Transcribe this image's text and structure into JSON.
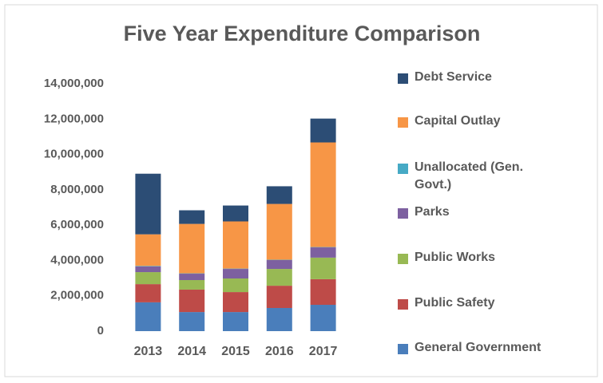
{
  "chart_data": {
    "type": "stacked_bar",
    "title": "Five Year Expenditure Comparison",
    "categories": [
      "2013",
      "2014",
      "2015",
      "2016",
      "2017"
    ],
    "series": [
      {
        "name": "General Government",
        "color": "#4a7ebb",
        "values": [
          1630000,
          1080000,
          1080000,
          1310000,
          1490000
        ]
      },
      {
        "name": "Public Safety",
        "color": "#be4b48",
        "values": [
          1030000,
          1270000,
          1130000,
          1260000,
          1450000
        ]
      },
      {
        "name": "Public Works",
        "color": "#98b954",
        "values": [
          680000,
          540000,
          770000,
          950000,
          1220000
        ]
      },
      {
        "name": "Parks",
        "color": "#7d60a0",
        "values": [
          320000,
          360000,
          540000,
          500000,
          580000
        ]
      },
      {
        "name": "Unallocated (Gen. Govt.)",
        "color": "#46aac5",
        "values": [
          30000,
          20000,
          20000,
          20000,
          20000
        ]
      },
      {
        "name": "Capital Outlay",
        "color": "#f79646",
        "values": [
          1790000,
          2800000,
          2670000,
          3160000,
          5920000
        ]
      },
      {
        "name": "Debt Service",
        "color": "#2c4d75",
        "values": [
          3430000,
          770000,
          900000,
          1000000,
          1350000
        ]
      }
    ],
    "ylim": [
      0,
      14000000
    ],
    "yticks": [
      0,
      {
        "value": 2000000,
        "label": "2,000,000"
      },
      {
        "value": 4000000,
        "label": "4,000,000"
      },
      {
        "value": 6000000,
        "label": "6,000,000"
      },
      {
        "value": 8000000,
        "label": "8,000,000"
      },
      {
        "value": 10000000,
        "label": "10,000,000"
      },
      {
        "value": 12000000,
        "label": "12,000,000"
      },
      {
        "value": 14000000,
        "label": "14,000,000"
      }
    ],
    "grid": false
  }
}
